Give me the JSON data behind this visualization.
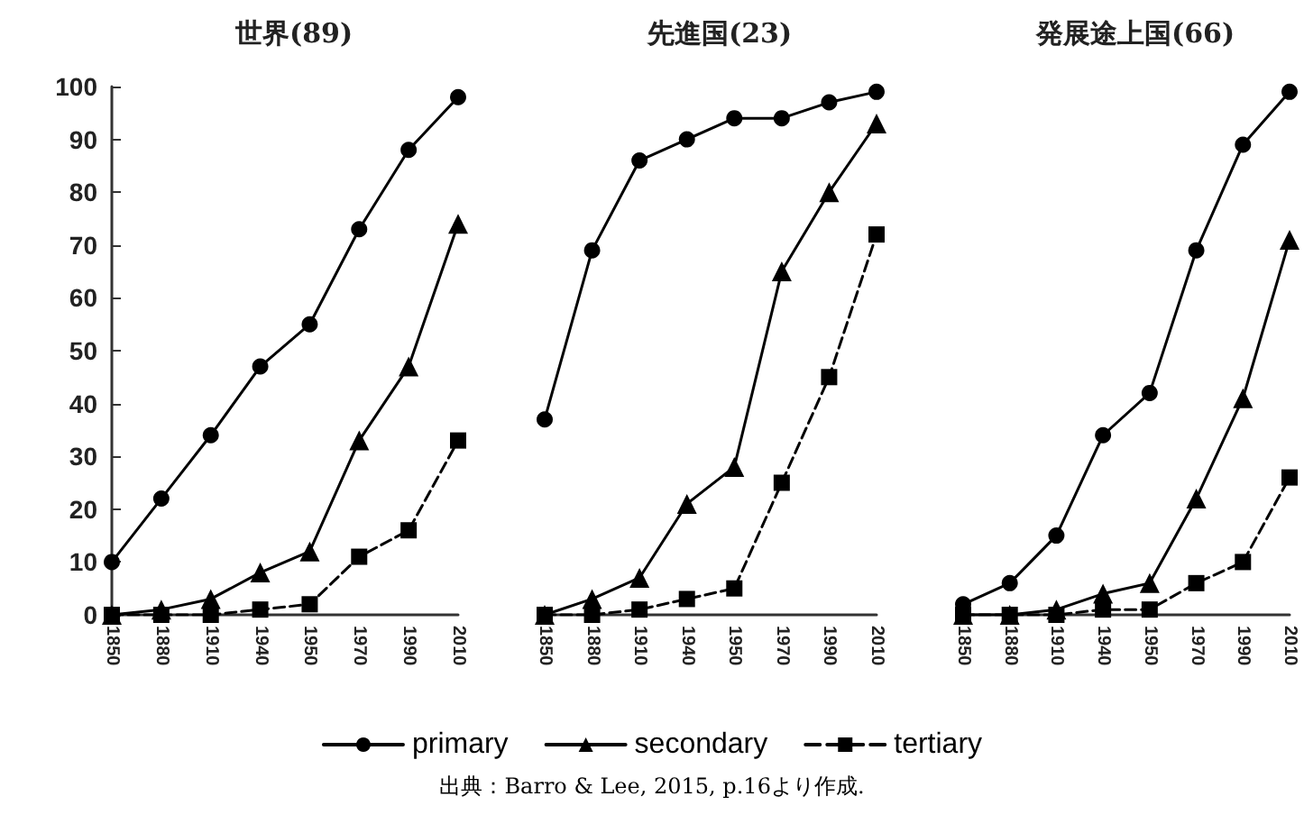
{
  "chart_data": [
    {
      "type": "line",
      "title": "世界(89)",
      "categories": [
        "1850",
        "1880",
        "1910",
        "1940",
        "1950",
        "1970",
        "1990",
        "2010"
      ],
      "ylim": [
        0,
        100
      ],
      "yticks": [
        0,
        10,
        20,
        30,
        40,
        50,
        60,
        70,
        80,
        90,
        100
      ],
      "grid": false,
      "legend": "bottom",
      "annotations": [
        "出典：Barro & Lee, 2015, p.16より作成."
      ],
      "series": [
        {
          "name": "primary",
          "color": "#000000",
          "marker": "circle",
          "line_style": "solid",
          "values": [
            10,
            22,
            34,
            47,
            55,
            73,
            88,
            98
          ]
        },
        {
          "name": "secondary",
          "color": "#000000",
          "marker": "triangle",
          "line_style": "solid",
          "values": [
            0,
            1,
            3,
            8,
            12,
            33,
            47,
            74
          ]
        },
        {
          "name": "tertiary",
          "color": "#000000",
          "marker": "square",
          "line_style": "dashed",
          "values": [
            0,
            0,
            0,
            1,
            2,
            11,
            16,
            33
          ]
        }
      ]
    },
    {
      "type": "line",
      "title": "先進国(23)",
      "categories": [
        "1850",
        "1880",
        "1910",
        "1940",
        "1950",
        "1970",
        "1990",
        "2010"
      ],
      "ylim": [
        0,
        100
      ],
      "yticks": [
        0,
        10,
        20,
        30,
        40,
        50,
        60,
        70,
        80,
        90,
        100
      ],
      "grid": false,
      "tick_labels": "x",
      "series": [
        {
          "color": "#000000",
          "marker": "circle",
          "line_style": "solid",
          "values": [
            37,
            69,
            86,
            90,
            94,
            94,
            97,
            99
          ]
        },
        {
          "color": "#000000",
          "marker": "triangle",
          "line_style": "solid",
          "values": [
            0,
            3,
            7,
            21,
            28,
            65,
            80,
            93
          ]
        },
        {
          "color": "#000000",
          "marker": "square",
          "line_style": "dashed",
          "values": [
            0,
            0,
            1,
            3,
            5,
            25,
            45,
            72
          ]
        }
      ]
    },
    {
      "type": "line",
      "title": "発展途上国(66)",
      "categories": [
        "1850",
        "1880",
        "1910",
        "1940",
        "1950",
        "1970",
        "1990",
        "2010"
      ],
      "ylim": [
        0,
        100
      ],
      "yticks": [
        0,
        10,
        20,
        30,
        40,
        50,
        60,
        70,
        80,
        90,
        100
      ],
      "grid": false,
      "tick_labels": "x",
      "series": [
        {
          "color": "#000000",
          "marker": "circle",
          "line_style": "solid",
          "values": [
            2,
            6,
            15,
            34,
            42,
            69,
            89,
            99
          ]
        },
        {
          "color": "#000000",
          "marker": "triangle",
          "line_style": "solid",
          "values": [
            0,
            0,
            1,
            4,
            6,
            22,
            41,
            71
          ]
        },
        {
          "color": "#000000",
          "marker": "square",
          "line_style": "dashed",
          "values": [
            0,
            0,
            0,
            1,
            1,
            6,
            10,
            26
          ]
        }
      ]
    }
  ]
}
